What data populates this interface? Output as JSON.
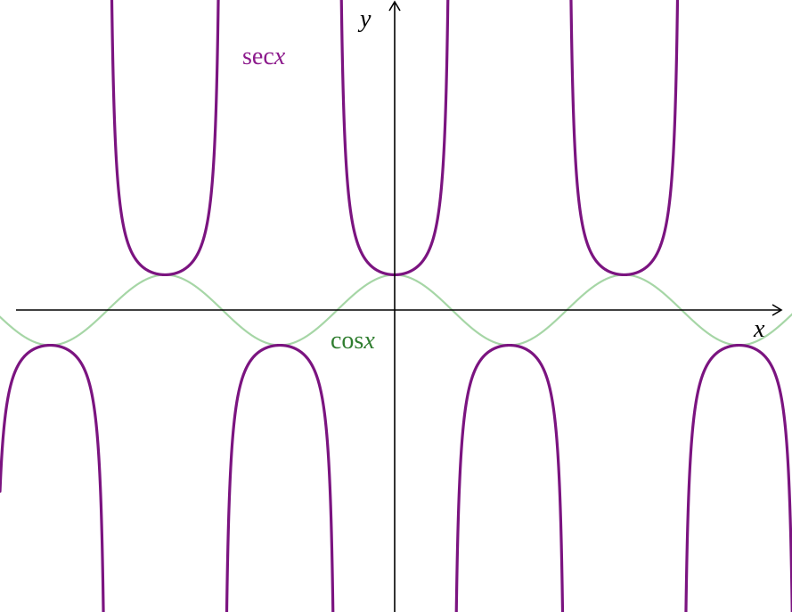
{
  "chart_data": {
    "type": "line",
    "title": "",
    "xlabel": "x",
    "ylabel": "y",
    "xlim": [
      -10.8,
      11.2
    ],
    "ylim": [
      -8.4,
      8.8
    ],
    "grid": false,
    "series": [
      {
        "name": "sec x",
        "label_prefix": "sec",
        "label_var": "x",
        "color": "#7b1480",
        "function": "sec",
        "x_domain": [
          -10.8,
          11.2
        ],
        "points": [
          {
            "x": -6.283,
            "y": 1
          },
          {
            "x": -3.142,
            "y": -1
          },
          {
            "x": 0,
            "y": 1
          },
          {
            "x": 3.142,
            "y": -1
          },
          {
            "x": 6.283,
            "y": 1
          },
          {
            "x": 9.425,
            "y": -1
          },
          {
            "x": -9.425,
            "y": -1
          }
        ]
      },
      {
        "name": "cos x",
        "label_prefix": "cos",
        "label_var": "x",
        "color": "#a6d6a6",
        "function": "cos",
        "x_domain": [
          -10.8,
          11.2
        ],
        "points": [
          {
            "x": -6.283,
            "y": 1
          },
          {
            "x": -3.142,
            "y": -1
          },
          {
            "x": 0,
            "y": 1
          },
          {
            "x": 3.142,
            "y": -1
          },
          {
            "x": 6.283,
            "y": 1
          },
          {
            "x": 9.425,
            "y": -1
          },
          {
            "x": -9.425,
            "y": -1
          }
        ]
      }
    ],
    "label_colors": {
      "sec": "#8c1a8c",
      "cos": "#2f7d2f"
    },
    "axis_color": "#000000"
  }
}
